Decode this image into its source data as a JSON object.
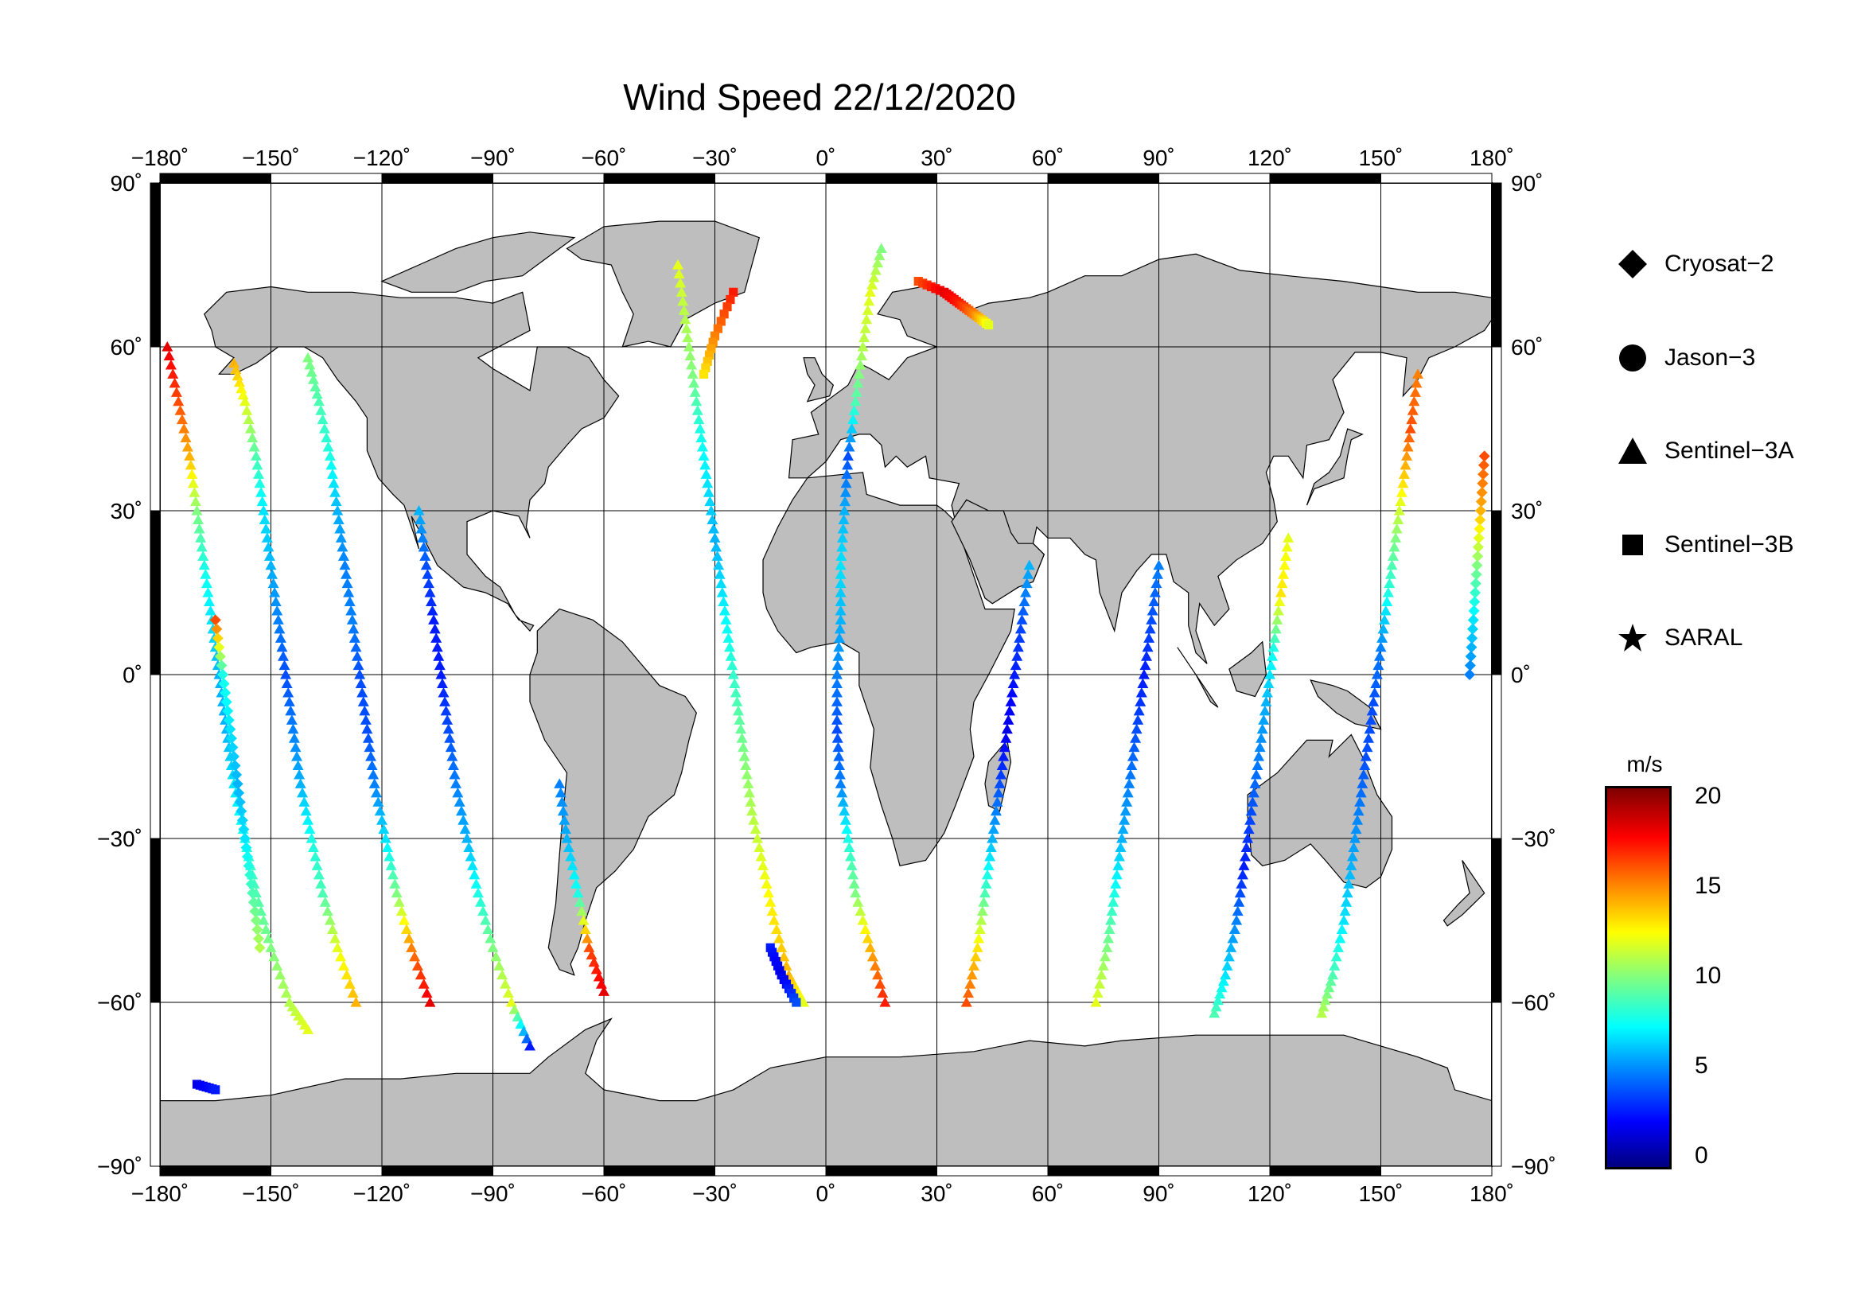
{
  "title": "Wind Speed 22/12/2020",
  "map": {
    "projection": "plate-carree",
    "lon_range": [
      -180,
      180
    ],
    "lat_range": [
      -90,
      90
    ],
    "lon_ticks": [
      -180,
      -150,
      -120,
      -90,
      -60,
      -30,
      0,
      30,
      60,
      90,
      120,
      150,
      180
    ],
    "lat_ticks": [
      90,
      60,
      30,
      0,
      -30,
      -60,
      -90
    ],
    "lon_tick_labels": [
      "−180˚",
      "−150˚",
      "−120˚",
      "−90˚",
      "−60˚",
      "−30˚",
      "0˚",
      "30˚",
      "60˚",
      "90˚",
      "120˚",
      "150˚",
      "180˚"
    ],
    "lat_tick_labels": [
      "90˚",
      "60˚",
      "30˚",
      "0˚",
      "−30˚",
      "−60˚",
      "−90˚"
    ],
    "land_color": "#bebebe",
    "ocean_color": "#ffffff",
    "grid": true
  },
  "legend": {
    "items": [
      {
        "label": "Cryosat−2",
        "symbol": "diamond"
      },
      {
        "label": "Jason−3",
        "symbol": "circle"
      },
      {
        "label": "Sentinel−3A",
        "symbol": "triangle"
      },
      {
        "label": "Sentinel−3B",
        "symbol": "square"
      },
      {
        "label": "SARAL",
        "symbol": "star"
      }
    ]
  },
  "colorbar": {
    "unit": "m/s",
    "min": 0,
    "max": 20,
    "ticks": [
      "20",
      "15",
      "10",
      "5",
      "0"
    ],
    "colormap": "jet"
  },
  "chart_data": {
    "type": "scatter",
    "title": "Wind Speed 22/12/2020",
    "xlabel": "",
    "ylabel": "",
    "xlim": [
      -180,
      180
    ],
    "ylim": [
      -90,
      90
    ],
    "value_unit": "m/s",
    "series": [
      {
        "name": "Sentinel−3A",
        "symbol": "triangle",
        "tracks": [
          {
            "lat": [
              60,
              50,
              40,
              30,
              20,
              10,
              0,
              -10,
              -20,
              -30,
              -40,
              -50,
              -60,
              -65
            ],
            "lon": [
              -178,
              -175,
              -172,
              -170,
              -168,
              -166,
              -164,
              -162,
              -160,
              -157,
              -154,
              -150,
              -145,
              -140
            ],
            "speed": [
              18,
              16,
              14,
              10,
              8,
              7,
              6,
              6,
              7,
              8,
              9,
              10,
              11,
              12
            ]
          },
          {
            "lat": [
              57,
              50,
              40,
              30,
              20,
              10,
              0,
              -10,
              -20,
              -30,
              -40,
              -50,
              -60
            ],
            "lon": [
              -160,
              -157,
              -154,
              -152,
              -150,
              -148,
              -146,
              -144,
              -142,
              -139,
              -136,
              -132,
              -127
            ],
            "speed": [
              14,
              12,
              9,
              7,
              6,
              5,
              4,
              5,
              6,
              8,
              9,
              12,
              14
            ]
          },
          {
            "lat": [
              58,
              50,
              40,
              30,
              20,
              10,
              0,
              -10,
              -20,
              -30,
              -40,
              -50,
              -60
            ],
            "lon": [
              -140,
              -137,
              -134,
              -132,
              -130,
              -128,
              -126,
              -124,
              -122,
              -119,
              -116,
              -112,
              -107
            ],
            "speed": [
              10,
              9,
              8,
              6,
              5,
              5,
              4,
              4,
              5,
              7,
              10,
              15,
              18
            ]
          },
          {
            "lat": [
              30,
              20,
              10,
              0,
              -10,
              -20,
              -30,
              -40,
              -50,
              -60,
              -68
            ],
            "lon": [
              -110,
              -108,
              -106,
              -104,
              -102,
              -100,
              -97,
              -94,
              -90,
              -85,
              -80
            ],
            "speed": [
              6,
              4,
              3,
              3,
              4,
              5,
              6,
              8,
              10,
              12,
              3
            ]
          },
          {
            "lat": [
              -20,
              -30,
              -40,
              -50,
              -58
            ],
            "lon": [
              -72,
              -70,
              -67,
              -64,
              -60
            ],
            "speed": [
              5,
              6,
              8,
              16,
              18
            ]
          },
          {
            "lat": [
              75,
              65,
              55,
              45,
              35,
              25,
              15,
              5,
              -5,
              -15,
              -25,
              -35,
              -45,
              -55,
              -60
            ],
            "lon": [
              -40,
              -38,
              -36,
              -34,
              -32,
              -30,
              -28,
              -26,
              -24,
              -22,
              -20,
              -17,
              -14,
              -10,
              -6
            ],
            "speed": [
              12,
              11,
              10,
              8,
              7,
              6,
              7,
              8,
              9,
              10,
              11,
              12,
              13,
              14,
              12
            ]
          },
          {
            "lat": [
              78,
              70,
              60,
              50,
              40,
              30,
              20,
              10,
              0,
              -10,
              -20,
              -30,
              -40,
              -50,
              -60
            ],
            "lon": [
              15,
              12,
              10,
              8,
              6,
              5,
              4,
              4,
              3,
              3,
              4,
              6,
              8,
              12,
              16
            ],
            "speed": [
              10,
              12,
              11,
              9,
              4,
              6,
              7,
              6,
              5,
              4,
              5,
              8,
              10,
              14,
              17
            ]
          },
          {
            "lat": [
              20,
              10,
              0,
              -10,
              -20,
              -30,
              -40,
              -50,
              -60
            ],
            "lon": [
              55,
              53,
              51,
              49,
              47,
              45,
              43,
              41,
              38
            ],
            "speed": [
              6,
              4,
              3,
              2,
              4,
              6,
              9,
              13,
              16
            ]
          },
          {
            "lat": [
              20,
              10,
              0,
              -10,
              -20,
              -30,
              -40,
              -50,
              -60
            ],
            "lon": [
              90,
              88,
              86,
              84,
              82,
              80,
              78,
              76,
              73
            ],
            "speed": [
              5,
              4,
              3,
              4,
              5,
              6,
              8,
              10,
              12
            ]
          },
          {
            "lat": [
              25,
              15,
              5,
              -5,
              -15,
              -25,
              -35,
              -45,
              -55,
              -62
            ],
            "lon": [
              125,
              123,
              121,
              119,
              117,
              115,
              113,
              111,
              108,
              105
            ],
            "speed": [
              12,
              13,
              8,
              6,
              5,
              4,
              3,
              5,
              7,
              9
            ]
          },
          {
            "lat": [
              55,
              45,
              35,
              25,
              15,
              5,
              -5,
              -15,
              -25,
              -35,
              -45,
              -55,
              -62
            ],
            "lon": [
              160,
              158,
              156,
              154,
              152,
              150,
              148,
              146,
              144,
              142,
              140,
              137,
              134
            ],
            "speed": [
              15,
              16,
              13,
              10,
              8,
              5,
              4,
              4,
              5,
              6,
              7,
              9,
              11
            ]
          }
        ]
      },
      {
        "name": "Sentinel−3B",
        "symbol": "square",
        "tracks": [
          {
            "lat": [
              72,
              70,
              68,
              66,
              64
            ],
            "lon": [
              25,
              32,
              36,
              40,
              44
            ],
            "speed": [
              16,
              18,
              17,
              15,
              12
            ]
          },
          {
            "lat": [
              70,
              62,
              55
            ],
            "lon": [
              -25,
              -30,
              -33
            ],
            "speed": [
              17,
              15,
              13
            ]
          },
          {
            "lat": [
              -75,
              -76
            ],
            "lon": [
              -170,
              -165
            ],
            "speed": [
              2,
              3
            ]
          },
          {
            "lat": [
              -50,
              -55,
              -60
            ],
            "lon": [
              -15,
              -12,
              -8
            ],
            "speed": [
              3,
              2,
              4
            ]
          }
        ]
      },
      {
        "name": "Cryosat−2",
        "symbol": "diamond",
        "tracks": [
          {
            "lat": [
              10,
              0,
              -10,
              -20,
              -30,
              -40,
              -50
            ],
            "lon": [
              -165,
              -163,
              -161,
              -159,
              -157,
              -155,
              -153
            ],
            "speed": [
              16,
              8,
              7,
              6,
              7,
              9,
              11
            ]
          },
          {
            "lat": [
              40,
              30,
              20,
              10,
              0
            ],
            "lon": [
              178,
              177,
              176,
              175,
              174
            ],
            "speed": [
              16,
              14,
              10,
              7,
              5
            ]
          }
        ]
      }
    ]
  }
}
